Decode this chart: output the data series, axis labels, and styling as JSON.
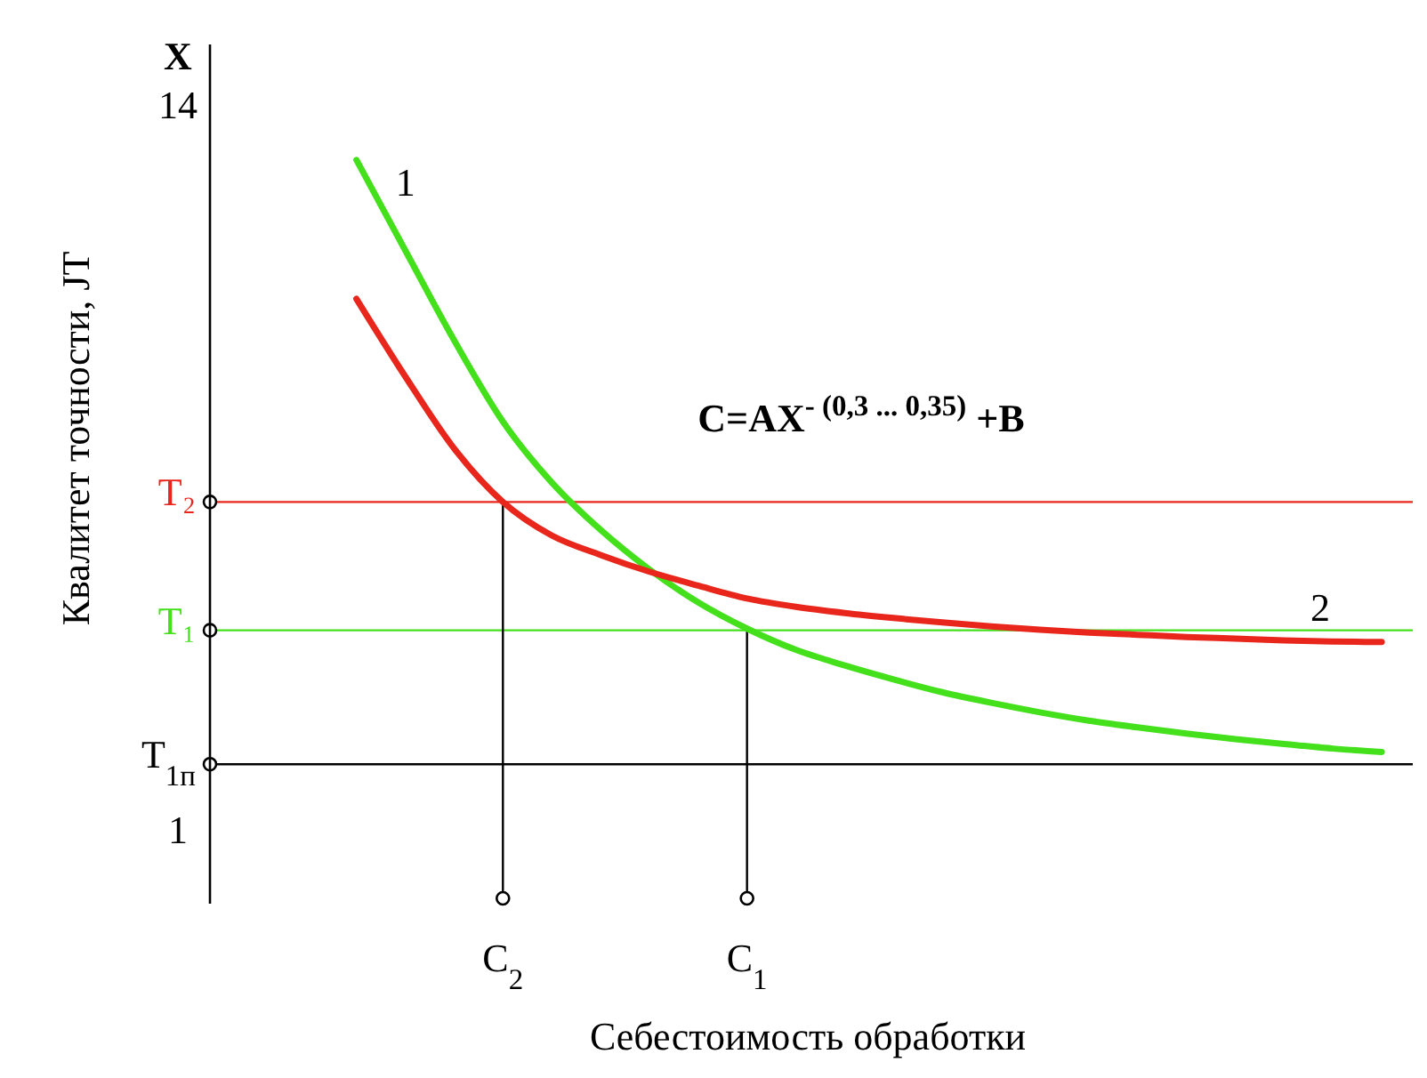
{
  "chart_data": {
    "type": "line",
    "xlabel": "Себестоимость обработки",
    "ylabel": "Квалитет точности, JT",
    "categories": [
      null,
      null,
      null,
      null,
      null,
      null,
      "C$_{2}$",
      null,
      null,
      null,
      null,
      "C$_{1}$",
      null,
      null,
      null,
      null,
      null,
      null,
      null,
      null,
      null,
      null,
      null,
      null,
      null
    ],
    "ylim": [
      -0.3,
      15.1
    ],
    "yticks": [
      14,
      1
    ],
    "series": [
      {
        "name": "1",
        "color": "#44e01c",
        "values": [
          null,
          null,
          null,
          13.03,
          11.41,
          9.8,
          8.34,
          7.25,
          6.4,
          5.69,
          5.1,
          4.63,
          4.25,
          3.97,
          3.72,
          3.49,
          3.3,
          3.13,
          2.98,
          2.86,
          2.75,
          2.65,
          2.56,
          2.48,
          2.42
        ]
      },
      {
        "name": "2",
        "color": "#e8261c",
        "values": [
          null,
          null,
          null,
          10.54,
          9.15,
          7.86,
          6.9,
          6.3,
          5.95,
          5.65,
          5.4,
          5.17,
          5.02,
          4.91,
          4.82,
          4.74,
          4.67,
          4.61,
          4.56,
          4.52,
          4.48,
          4.45,
          4.42,
          4.4,
          4.39
        ]
      }
    ],
    "ref_lines": [
      {
        "axis": "y",
        "value": 6.9,
        "label": "T₂",
        "color": "#e8261c"
      },
      {
        "axis": "y",
        "value": 4.6,
        "label": "T₁",
        "color": "#44e01c"
      },
      {
        "axis": "y",
        "value": 2.2,
        "label": "T$_{1п}$",
        "color": "#000000"
      },
      {
        "axis": "x",
        "value": "C$_{2}$",
        "color": "#000000"
      },
      {
        "axis": "x",
        "value": "C$_{1}$",
        "color": "#000000"
      }
    ],
    "annotations": [
      "X",
      "C=AX$^{- (0,3 ... 0,35)}$ +B"
    ]
  }
}
